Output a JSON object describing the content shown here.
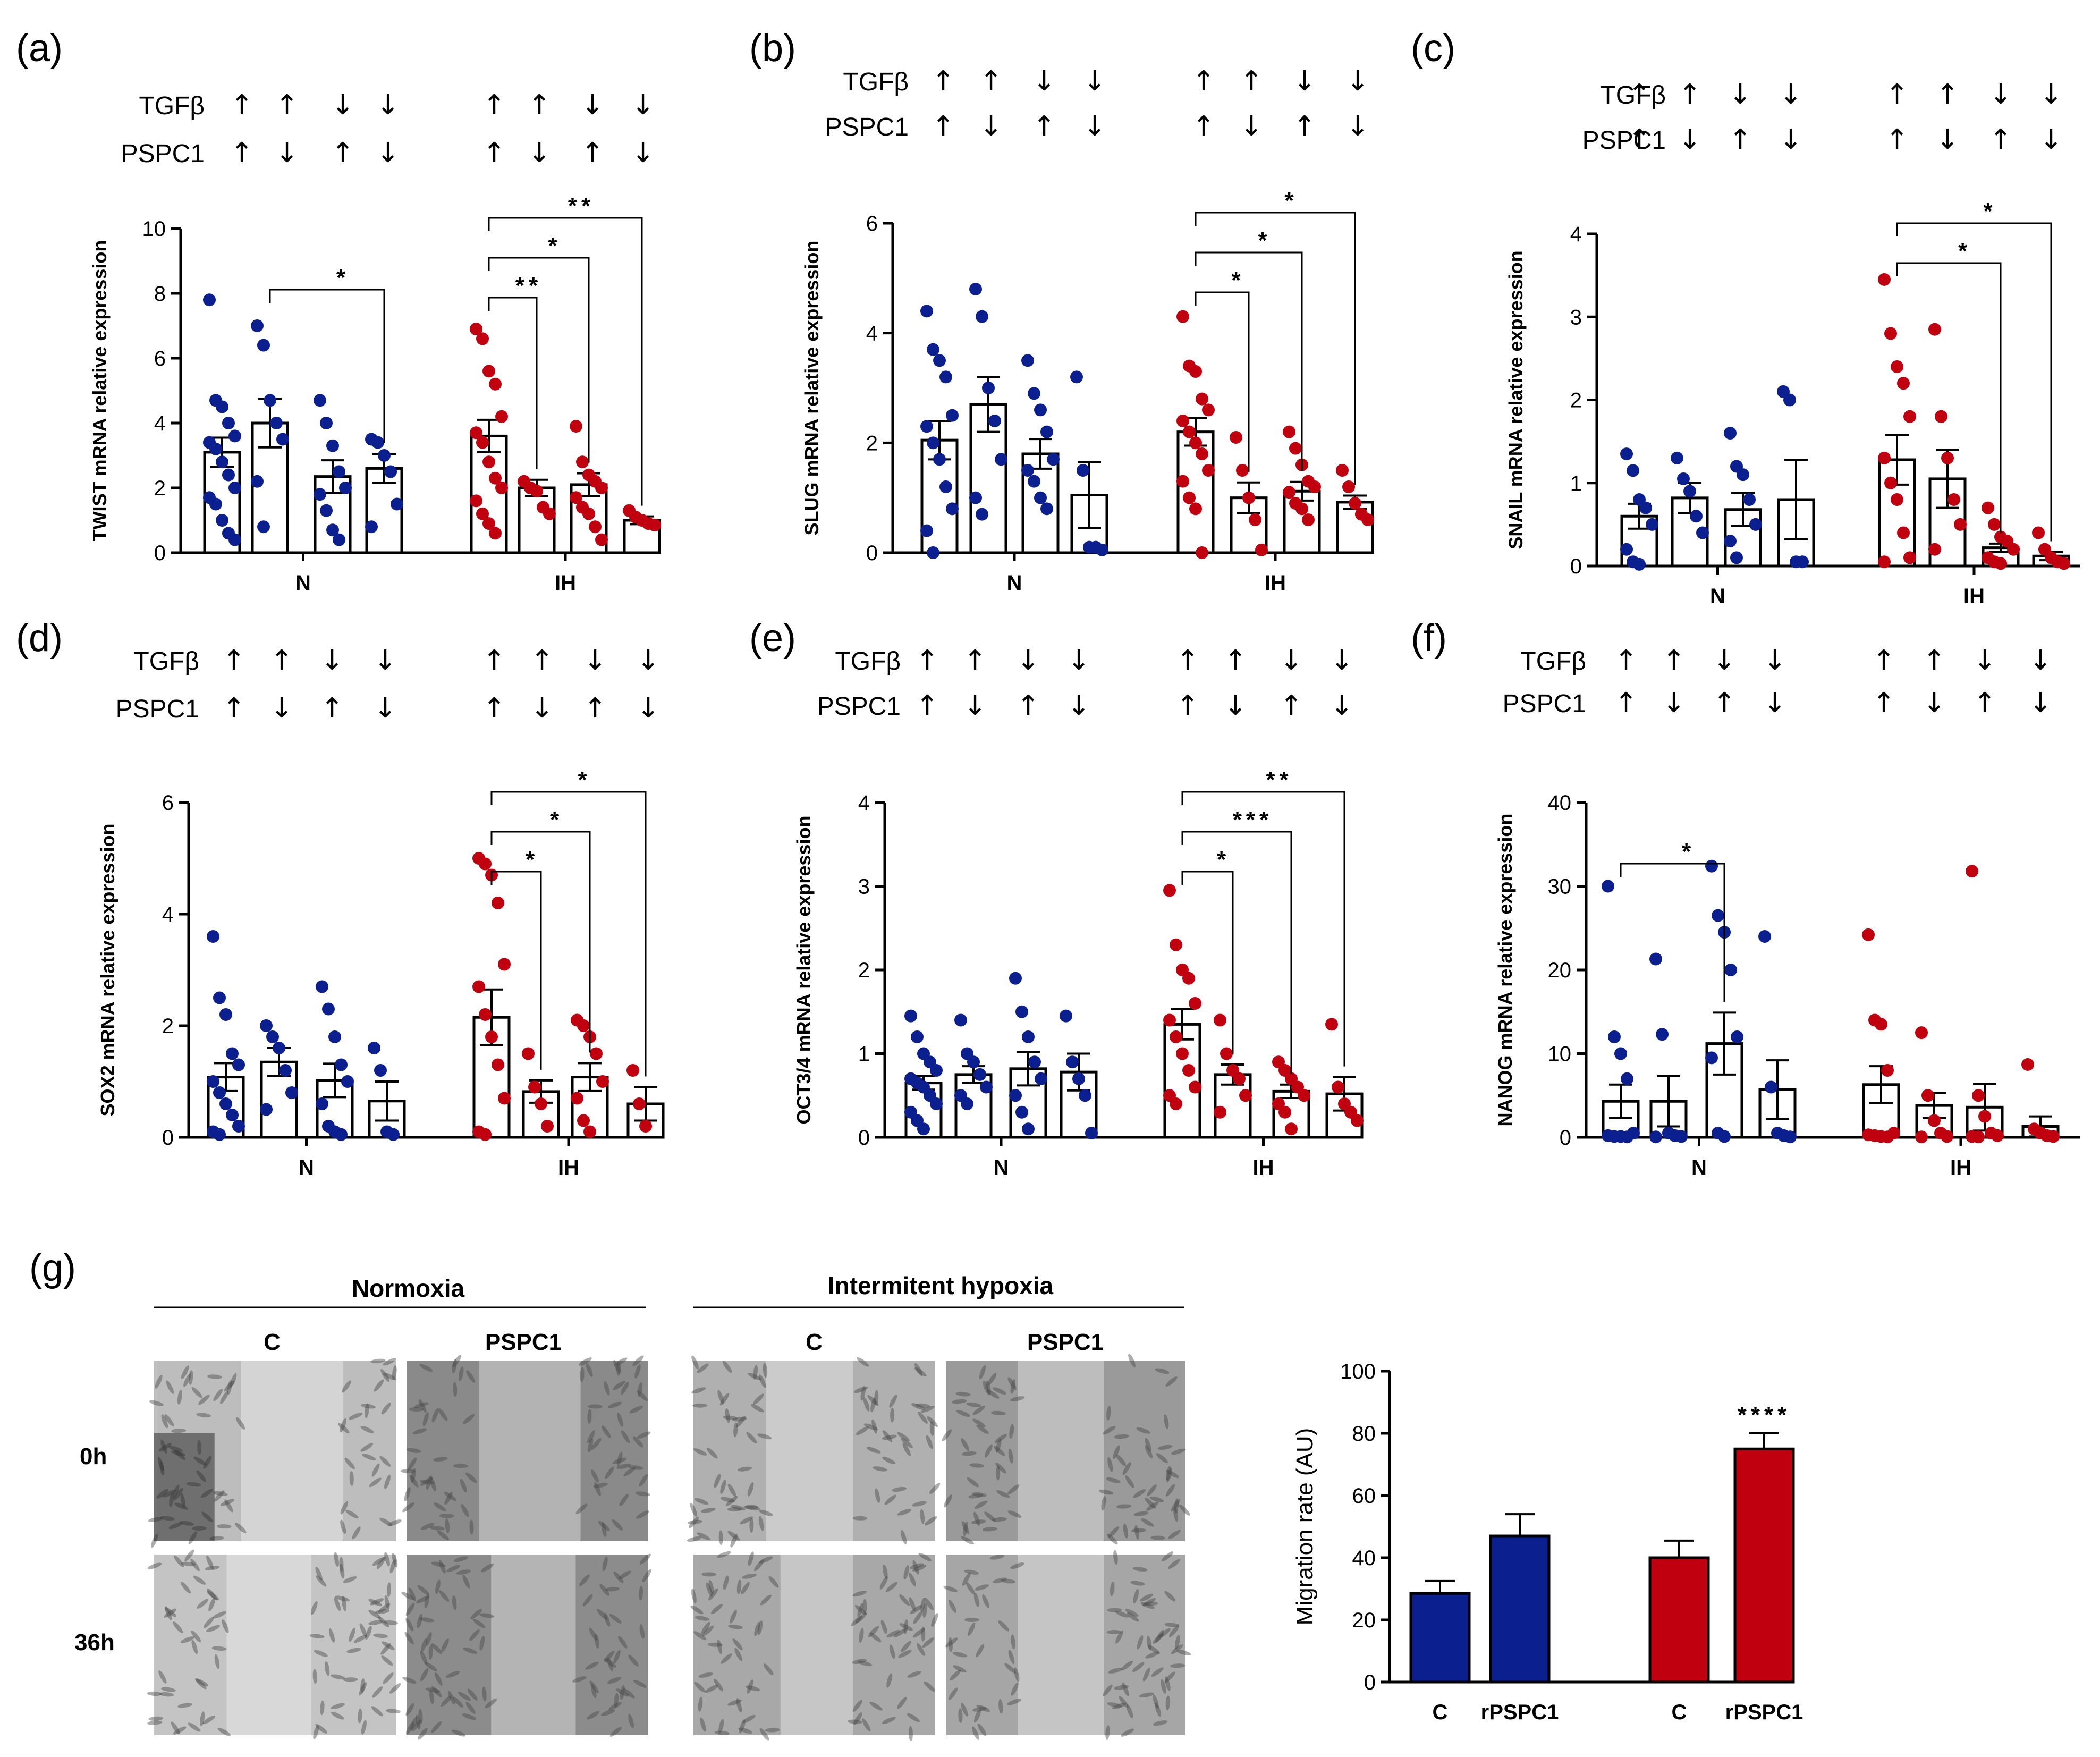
{
  "figure": {
    "colors": {
      "normoxia": "#0b1f8f",
      "ih": "#c1000f",
      "axis": "#000000"
    },
    "treatment_rows": {
      "row1_label": "TGFβ",
      "row2_label": "PSPC1",
      "row1_arrows": [
        "↑",
        "↑",
        "↓",
        "↓"
      ],
      "row2_arrows": [
        "↑",
        "↓",
        "↑",
        "↓"
      ]
    }
  },
  "chart_data": [
    {
      "id": "a",
      "panel_label": "(a)",
      "type": "bar",
      "title": "",
      "xlabel": "",
      "ylabel": "TWIST mRNA relative expression",
      "ylim": [
        0,
        10
      ],
      "yticks": [
        "0",
        "2",
        "4",
        "6",
        "8",
        "10"
      ],
      "groups": [
        "N",
        "IH"
      ],
      "series": [
        {
          "name": "N",
          "color": "#0b1f8f",
          "means": [
            3.1,
            4.0,
            2.35,
            2.6
          ],
          "sems": [
            0.45,
            0.75,
            0.5,
            0.45
          ],
          "points": [
            [
              7.8,
              4.7,
              4.5,
              4.0,
              3.6,
              3.4,
              3.2,
              2.8,
              2.4,
              2.0,
              1.7,
              1.5,
              1.0,
              0.6,
              0.4
            ],
            [
              7.0,
              6.4,
              4.7,
              4.0,
              3.5,
              2.2,
              0.8
            ],
            [
              4.7,
              4.0,
              3.3,
              2.5,
              2.0,
              1.8,
              1.3,
              0.7,
              0.4
            ],
            [
              3.5,
              3.4,
              3.0,
              2.5,
              1.5,
              0.8
            ]
          ]
        },
        {
          "name": "IH",
          "color": "#c1000f",
          "means": [
            3.6,
            2.0,
            2.1,
            1.0
          ],
          "sems": [
            0.5,
            0.25,
            0.35,
            0.12
          ],
          "points": [
            [
              6.9,
              6.6,
              5.6,
              5.2,
              4.2,
              3.7,
              3.4,
              2.8,
              2.3,
              2.0,
              1.6,
              1.2,
              0.9,
              0.6
            ],
            [
              2.2,
              2.0,
              1.9,
              1.4,
              1.2
            ],
            [
              3.9,
              2.8,
              2.4,
              2.2,
              2.0,
              1.7,
              1.4,
              1.2,
              0.8,
              0.4
            ],
            [
              1.3,
              1.1,
              1.0,
              0.9,
              0.85
            ]
          ]
        }
      ],
      "significance": [
        {
          "from": [
            0,
            1
          ],
          "to": [
            0,
            3
          ],
          "label": "*"
        },
        {
          "from": [
            1,
            0
          ],
          "to": [
            1,
            1
          ],
          "label": "**"
        },
        {
          "from": [
            1,
            0
          ],
          "to": [
            1,
            2
          ],
          "label": "*"
        },
        {
          "from": [
            1,
            0
          ],
          "to": [
            1,
            3
          ],
          "label": "**"
        }
      ]
    },
    {
      "id": "b",
      "panel_label": "(b)",
      "type": "bar",
      "title": "",
      "xlabel": "",
      "ylabel": "SLUG mRNA relative expression",
      "ylim": [
        0,
        6
      ],
      "yticks": [
        "0",
        "2",
        "4",
        "6"
      ],
      "groups": [
        "N",
        "IH"
      ],
      "series": [
        {
          "name": "N",
          "color": "#0b1f8f",
          "means": [
            2.05,
            2.7,
            1.8,
            1.05
          ],
          "sems": [
            0.35,
            0.5,
            0.27,
            0.6
          ],
          "points": [
            [
              4.4,
              3.7,
              3.5,
              3.2,
              2.5,
              2.3,
              2.0,
              1.7,
              1.2,
              0.8,
              0.4,
              0.0
            ],
            [
              4.8,
              4.3,
              3.0,
              2.4,
              1.7,
              1.0,
              0.7
            ],
            [
              3.5,
              2.9,
              2.6,
              2.2,
              1.7,
              1.5,
              1.3,
              1.0,
              0.8
            ],
            [
              3.2,
              1.5,
              0.1,
              0.1,
              0.05
            ]
          ]
        },
        {
          "name": "IH",
          "color": "#c1000f",
          "means": [
            2.2,
            1.0,
            1.12,
            0.92
          ],
          "sems": [
            0.25,
            0.28,
            0.17,
            0.12
          ],
          "points": [
            [
              4.3,
              3.4,
              3.3,
              2.8,
              2.6,
              2.4,
              2.2,
              2.0,
              1.8,
              1.5,
              1.3,
              1.0,
              0.8,
              0.0
            ],
            [
              2.1,
              1.5,
              1.0,
              0.6,
              0.05
            ],
            [
              2.2,
              1.9,
              1.6,
              1.3,
              1.2,
              1.1,
              0.9,
              0.8,
              0.6
            ],
            [
              1.5,
              1.2,
              0.9,
              0.7,
              0.6
            ]
          ]
        }
      ],
      "significance": [
        {
          "from": [
            1,
            0
          ],
          "to": [
            1,
            1
          ],
          "label": "*"
        },
        {
          "from": [
            1,
            0
          ],
          "to": [
            1,
            2
          ],
          "label": "*"
        },
        {
          "from": [
            1,
            0
          ],
          "to": [
            1,
            3
          ],
          "label": "*"
        }
      ]
    },
    {
      "id": "c",
      "panel_label": "(c)",
      "type": "bar",
      "title": "",
      "xlabel": "",
      "ylabel": "SNAIL mRNA relative expression",
      "ylim": [
        0,
        4
      ],
      "yticks": [
        "0",
        "1",
        "2",
        "3",
        "4"
      ],
      "groups": [
        "N",
        "IH"
      ],
      "series": [
        {
          "name": "N",
          "color": "#0b1f8f",
          "means": [
            0.6,
            0.82,
            0.68,
            0.8
          ],
          "sems": [
            0.15,
            0.18,
            0.2,
            0.48
          ],
          "points": [
            [
              1.35,
              1.15,
              0.8,
              0.7,
              0.5,
              0.2,
              0.05,
              0.02
            ],
            [
              1.3,
              1.05,
              0.9,
              0.6,
              0.4
            ],
            [
              1.6,
              1.2,
              1.1,
              0.8,
              0.5,
              0.3,
              0.1
            ],
            [
              2.1,
              2.0,
              0.05,
              0.05
            ]
          ]
        },
        {
          "name": "IH",
          "color": "#c1000f",
          "means": [
            1.28,
            1.05,
            0.22,
            0.12
          ],
          "sems": [
            0.3,
            0.35,
            0.05,
            0.05
          ],
          "points": [
            [
              3.45,
              2.8,
              2.4,
              2.2,
              1.8,
              1.3,
              1.0,
              0.8,
              0.4,
              0.1,
              0.05
            ],
            [
              2.85,
              1.8,
              1.3,
              0.8,
              0.5,
              0.2
            ],
            [
              0.7,
              0.5,
              0.35,
              0.3,
              0.2,
              0.1,
              0.05,
              0.03
            ],
            [
              0.4,
              0.2,
              0.1,
              0.05,
              0.03
            ]
          ]
        }
      ],
      "significance": [
        {
          "from": [
            1,
            0
          ],
          "to": [
            1,
            2
          ],
          "label": "*"
        },
        {
          "from": [
            1,
            0
          ],
          "to": [
            1,
            3
          ],
          "label": "*"
        }
      ]
    },
    {
      "id": "d",
      "panel_label": "(d)",
      "type": "bar",
      "title": "",
      "xlabel": "",
      "ylabel": "SOX2 mRNA relative expression",
      "ylim": [
        0,
        6
      ],
      "yticks": [
        "0",
        "2",
        "4",
        "6"
      ],
      "groups": [
        "N",
        "IH"
      ],
      "series": [
        {
          "name": "N",
          "color": "#0b1f8f",
          "means": [
            1.08,
            1.35,
            1.02,
            0.65
          ],
          "sems": [
            0.25,
            0.25,
            0.3,
            0.35
          ],
          "points": [
            [
              3.6,
              2.5,
              2.2,
              1.5,
              1.3,
              1.0,
              0.8,
              0.6,
              0.4,
              0.2,
              0.1,
              0.05
            ],
            [
              2.0,
              1.8,
              1.6,
              1.2,
              0.8,
              0.5
            ],
            [
              2.7,
              2.3,
              1.8,
              1.3,
              1.0,
              0.6,
              0.2,
              0.1,
              0.05
            ],
            [
              1.6,
              1.2,
              0.1,
              0.05
            ]
          ]
        },
        {
          "name": "IH",
          "color": "#c1000f",
          "means": [
            2.15,
            0.82,
            1.08,
            0.6
          ],
          "sems": [
            0.5,
            0.2,
            0.25,
            0.3
          ],
          "points": [
            [
              5.0,
              4.9,
              4.7,
              4.2,
              3.1,
              2.7,
              2.2,
              1.8,
              1.3,
              0.7,
              0.1,
              0.05
            ],
            [
              1.5,
              0.9,
              0.6,
              0.2
            ],
            [
              2.1,
              2.0,
              1.8,
              1.5,
              1.0,
              0.7,
              0.3,
              0.1
            ],
            [
              1.2,
              0.6,
              0.2
            ]
          ]
        }
      ],
      "significance": [
        {
          "from": [
            1,
            0
          ],
          "to": [
            1,
            1
          ],
          "label": "*"
        },
        {
          "from": [
            1,
            0
          ],
          "to": [
            1,
            2
          ],
          "label": "*"
        },
        {
          "from": [
            1,
            0
          ],
          "to": [
            1,
            3
          ],
          "label": "*"
        }
      ]
    },
    {
      "id": "e",
      "panel_label": "(e)",
      "type": "bar",
      "title": "",
      "xlabel": "",
      "ylabel": "OCT3/4 mRNA relative expression",
      "ylim": [
        0,
        4
      ],
      "yticks": [
        "0",
        "1",
        "2",
        "3",
        "4"
      ],
      "groups": [
        "N",
        "IH"
      ],
      "series": [
        {
          "name": "N",
          "color": "#0b1f8f",
          "means": [
            0.65,
            0.75,
            0.82,
            0.78
          ],
          "sems": [
            0.08,
            0.1,
            0.2,
            0.22
          ],
          "points": [
            [
              1.45,
              1.2,
              1.0,
              0.9,
              0.8,
              0.7,
              0.65,
              0.6,
              0.5,
              0.4,
              0.3,
              0.2,
              0.1
            ],
            [
              1.4,
              1.0,
              0.9,
              0.75,
              0.6,
              0.5,
              0.4
            ],
            [
              1.9,
              1.5,
              1.2,
              0.9,
              0.7,
              0.5,
              0.3,
              0.1
            ],
            [
              1.45,
              0.9,
              0.7,
              0.5,
              0.05
            ]
          ]
        },
        {
          "name": "IH",
          "color": "#c1000f",
          "means": [
            1.35,
            0.75,
            0.55,
            0.52
          ],
          "sems": [
            0.18,
            0.12,
            0.08,
            0.2
          ],
          "points": [
            [
              2.95,
              2.3,
              2.0,
              1.9,
              1.6,
              1.4,
              1.2,
              1.0,
              0.8,
              0.6,
              0.5,
              0.4
            ],
            [
              1.4,
              1.0,
              0.8,
              0.7,
              0.5,
              0.3
            ],
            [
              0.9,
              0.8,
              0.7,
              0.6,
              0.5,
              0.4,
              0.3,
              0.1
            ],
            [
              1.35,
              0.6,
              0.4,
              0.3,
              0.2
            ]
          ]
        }
      ],
      "significance": [
        {
          "from": [
            1,
            0
          ],
          "to": [
            1,
            1
          ],
          "label": "*"
        },
        {
          "from": [
            1,
            0
          ],
          "to": [
            1,
            2
          ],
          "label": "***"
        },
        {
          "from": [
            1,
            0
          ],
          "to": [
            1,
            3
          ],
          "label": "**"
        }
      ]
    },
    {
      "id": "f",
      "panel_label": "(f)",
      "type": "bar",
      "title": "",
      "xlabel": "",
      "ylabel": "NANOG mRNA relative expression",
      "ylim": [
        0,
        40
      ],
      "yticks": [
        "0",
        "10",
        "20",
        "30",
        "40"
      ],
      "groups": [
        "N",
        "IH"
      ],
      "series": [
        {
          "name": "N",
          "color": "#0b1f8f",
          "means": [
            4.3,
            4.3,
            11.2,
            5.7
          ],
          "sems": [
            2.0,
            3.0,
            3.7,
            3.5
          ],
          "points": [
            [
              30.0,
              12.0,
              10.0,
              7.0,
              0.5,
              0.2,
              0.1,
              0.1,
              0.05
            ],
            [
              21.3,
              12.3,
              0.5,
              0.2,
              0.1,
              0.05
            ],
            [
              32.4,
              26.5,
              24.5,
              20.0,
              12.0,
              9.5,
              0.5,
              0.1
            ],
            [
              24.0,
              6.0,
              0.5,
              0.2,
              0.05
            ]
          ]
        },
        {
          "name": "IH",
          "color": "#c1000f",
          "means": [
            6.3,
            3.8,
            3.6,
            1.3
          ],
          "sems": [
            2.2,
            1.5,
            2.8,
            1.2
          ],
          "points": [
            [
              24.2,
              14.0,
              13.5,
              8.0,
              0.5,
              0.3,
              0.2,
              0.1,
              0.05
            ],
            [
              12.5,
              5.0,
              2.0,
              0.5,
              0.1,
              0.05
            ],
            [
              31.8,
              5.0,
              2.5,
              0.5,
              0.2,
              0.1,
              0.05
            ],
            [
              8.7,
              1.0,
              0.5,
              0.2,
              0.1
            ]
          ]
        }
      ],
      "significance": [
        {
          "from": [
            0,
            0
          ],
          "to": [
            0,
            2
          ],
          "label": "*"
        }
      ]
    },
    {
      "id": "g-chart",
      "panel_label": "",
      "type": "bar",
      "title": "",
      "xlabel": "",
      "ylabel": "Migration rate (AU)",
      "ylim": [
        0,
        100
      ],
      "yticks": [
        "0",
        "20",
        "40",
        "60",
        "80",
        "100"
      ],
      "categories": [
        "C",
        "rPSPC1",
        "C",
        "rPSPC1"
      ],
      "values": [
        28.5,
        47.0,
        40.0,
        75.0
      ],
      "errors": [
        4.0,
        7.0,
        5.5,
        5.0
      ],
      "colors": [
        "#0b1f8f",
        "#0b1f8f",
        "#c1000f",
        "#c1000f"
      ],
      "annotations": [
        {
          "bar": 3,
          "label": "****"
        }
      ]
    }
  ],
  "panel_g": {
    "label": "(g)",
    "normoxia_header": "Normoxia",
    "ih_header": "Intermitent hypoxia",
    "col_c": "C",
    "col_pspc1": "PSPC1",
    "row_0h": "0h",
    "row_36h": "36h"
  }
}
